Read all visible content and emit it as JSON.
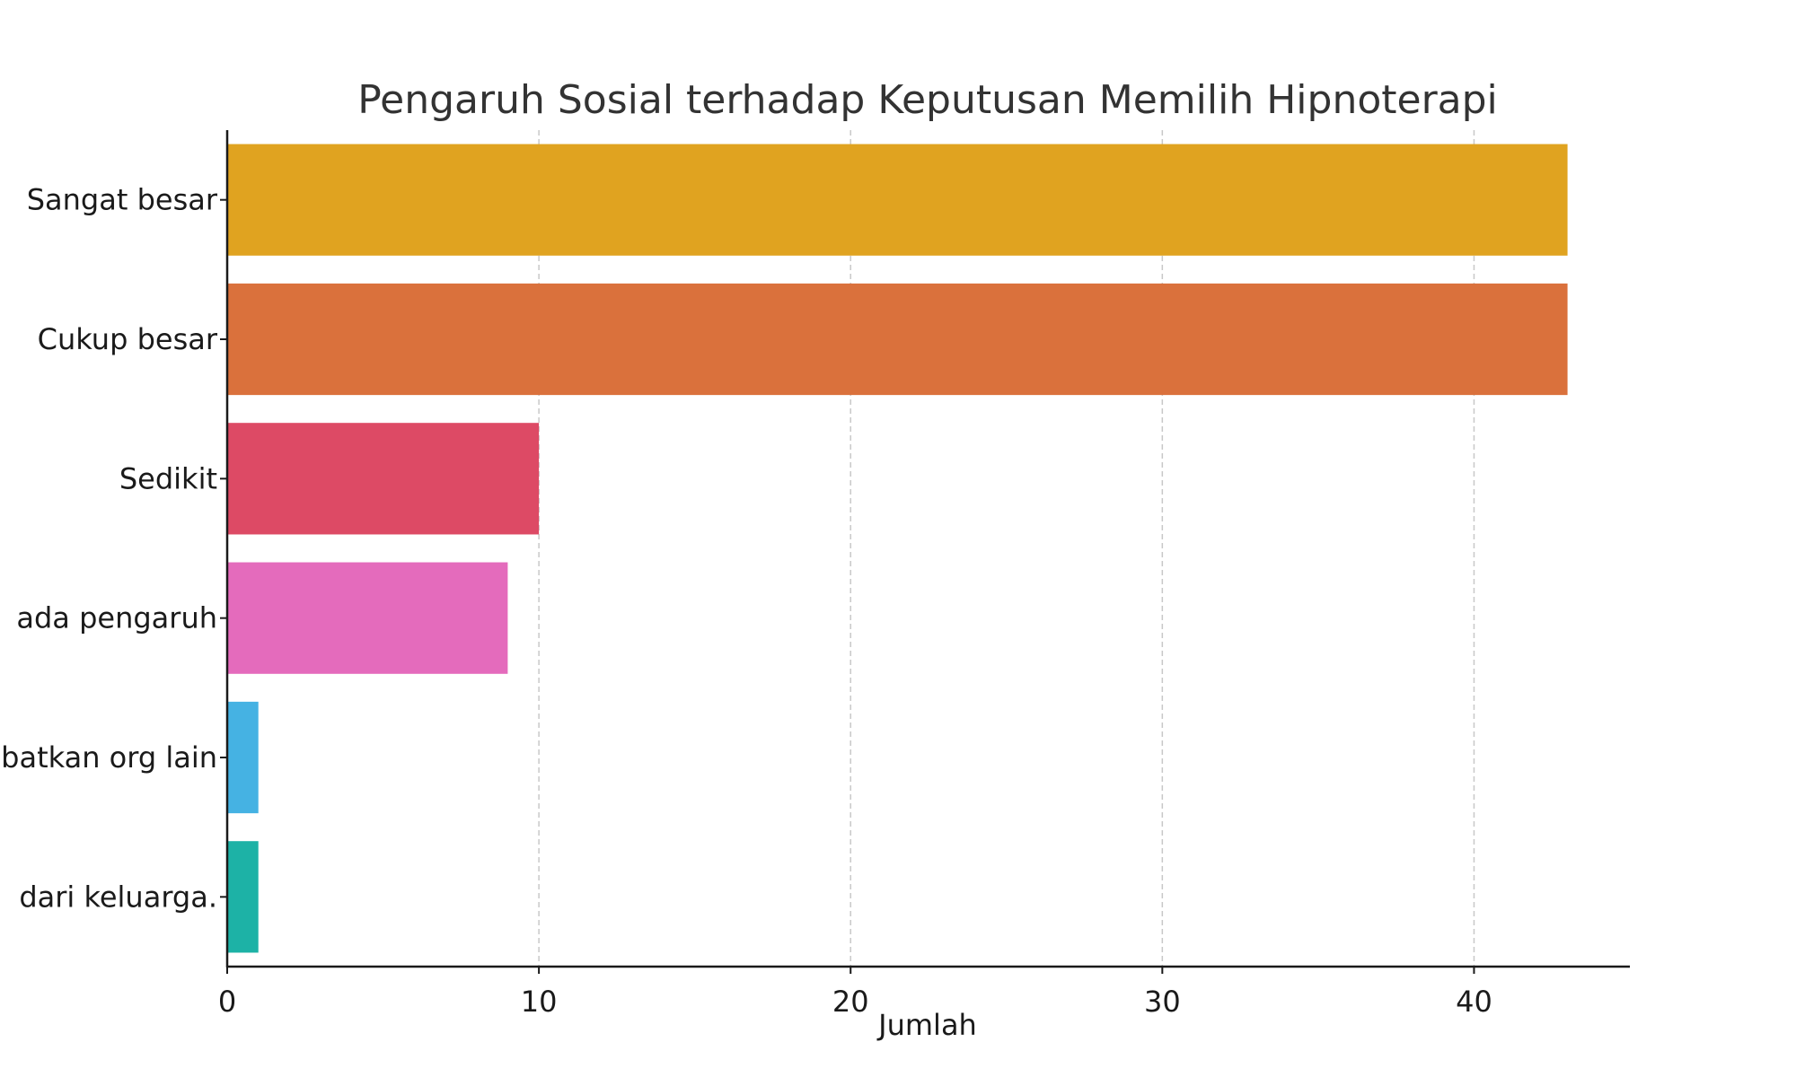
{
  "chart_data": {
    "type": "bar",
    "orientation": "horizontal",
    "title": "Pengaruh Sosial terhadap Keputusan Memilih Hipnoterapi",
    "xlabel": "Jumlah",
    "ylabel": "",
    "xlim": [
      0,
      45
    ],
    "xticks": [
      0,
      10,
      20,
      30,
      40
    ],
    "grid": "x-dashed",
    "categories": [
      "Sangat besar",
      "Cukup besar",
      "Sedikit",
      "ada pengaruh",
      "batkan org lain",
      "dari keluarga."
    ],
    "values": [
      43,
      43,
      10,
      9,
      1,
      1
    ],
    "colors": [
      "#E0A320",
      "#DA713C",
      "#DD4A65",
      "#E46BBC",
      "#45B2E3",
      "#1DB2A6"
    ]
  }
}
